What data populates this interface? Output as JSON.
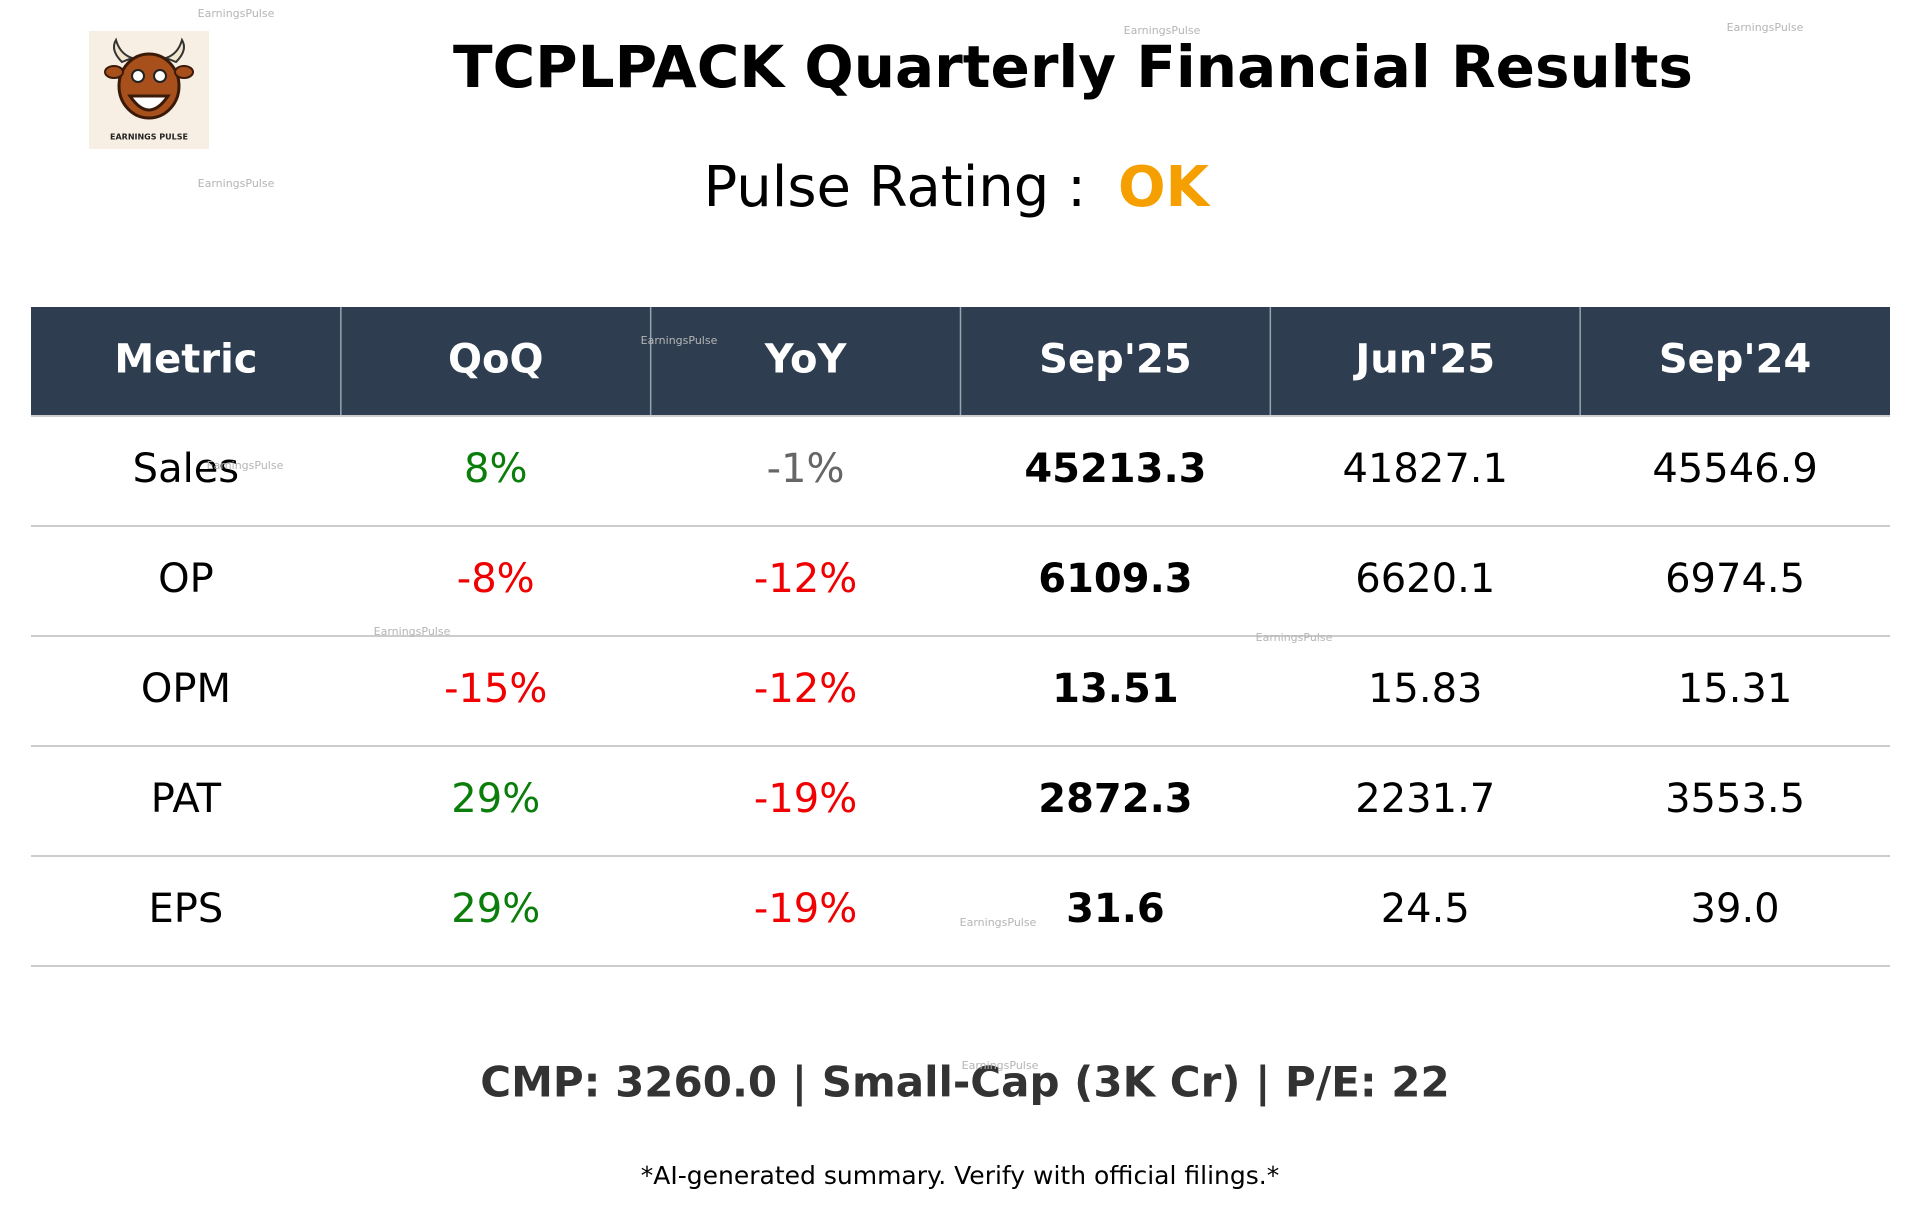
{
  "header": {
    "title": "TCPLPACK Quarterly Financial Results",
    "rating_label": "Pulse Rating :",
    "rating": "OK",
    "logo_text": "EARNINGS PULSE"
  },
  "watermark": "EarningsPulse",
  "table": {
    "columns": [
      "Metric",
      "QoQ",
      "YoY",
      "Sep'25",
      "Jun'25",
      "Sep'24"
    ],
    "rows": [
      [
        "Sales",
        "8%",
        "-1%",
        "45213.3",
        "41827.1",
        "45546.9"
      ],
      [
        "OP",
        "-8%",
        "-12%",
        "6109.3",
        "6620.1",
        "6974.5"
      ],
      [
        "OPM",
        "-15%",
        "-12%",
        "13.51",
        "15.83",
        "15.31"
      ],
      [
        "PAT",
        "29%",
        "-19%",
        "2872.3",
        "2231.7",
        "3553.5"
      ],
      [
        "EPS",
        "29%",
        "-19%",
        "31.6",
        "24.5",
        "39.0"
      ]
    ]
  },
  "footer": {
    "summary": "CMP: 3260.0 | Small-Cap (3K Cr) | P/E: 22",
    "disclaimer": "*AI-generated summary. Verify with official filings.*"
  }
}
